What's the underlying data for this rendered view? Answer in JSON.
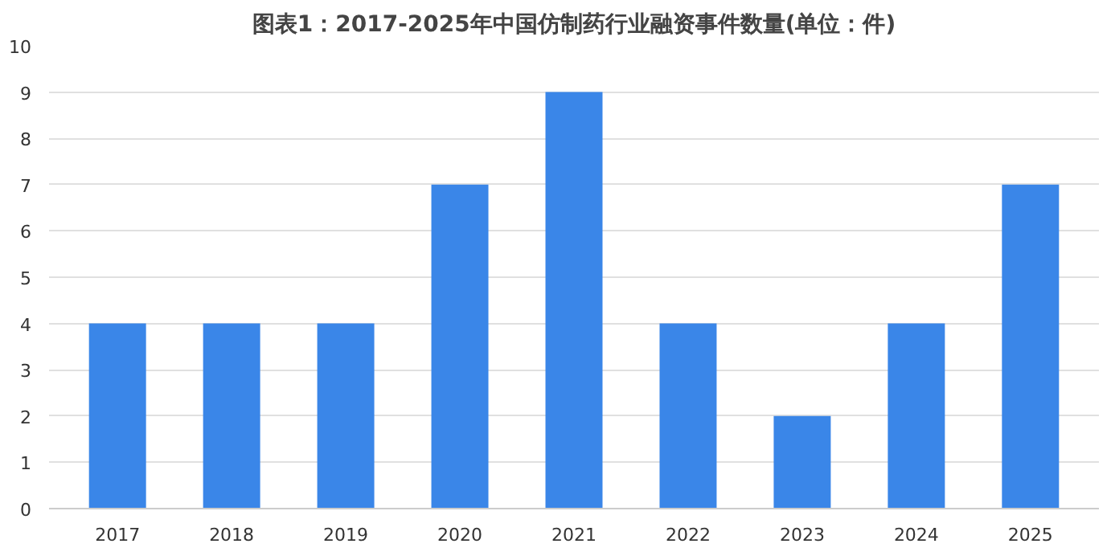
{
  "chart_data": {
    "type": "bar",
    "title": "图表1：2017-2025年中国仿制药行业融资事件数量(单位：件)",
    "categories": [
      "2017",
      "2018",
      "2019",
      "2020",
      "2021",
      "2022",
      "2023",
      "2024",
      "2025"
    ],
    "values": [
      4,
      4,
      4,
      7,
      9,
      4,
      2,
      4,
      7
    ],
    "color": "#3a86e8",
    "ylim": [
      0,
      10
    ],
    "yticks": [
      0,
      1,
      2,
      3,
      4,
      5,
      6,
      7,
      8,
      9,
      10
    ],
    "grid": "y"
  }
}
